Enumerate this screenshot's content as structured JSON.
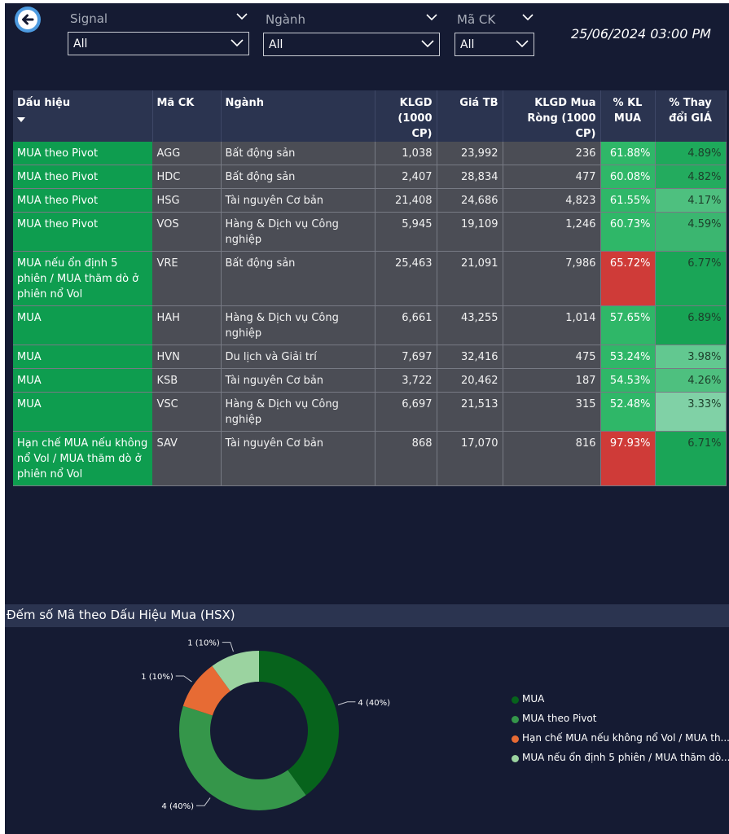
{
  "header": {
    "datetime": "25/06/2024 03:00 PM",
    "slicers": [
      {
        "title": "Signal",
        "value": "All"
      },
      {
        "title": "Ngành",
        "value": "All"
      },
      {
        "title": "Mã CK",
        "value": "All"
      }
    ]
  },
  "table": {
    "columns": [
      "Dấu hiệu",
      "Mã CK",
      "Ngành",
      "KLGD (1000 CP)",
      "Giá TB",
      "KLGD Mua Ròng (1000 CP)",
      "% KL MUA",
      "% Thay đổi GIÁ"
    ],
    "rows": [
      {
        "signal": "MUA theo Pivot",
        "code": "AGG",
        "sector": "Bất động sản",
        "volume": "1,038",
        "price": "23,992",
        "net_buy": "236",
        "buy_pct": "61.88%",
        "change_pct": "4.89%"
      },
      {
        "signal": "MUA theo Pivot",
        "code": "HDC",
        "sector": "Bất động sản",
        "volume": "2,407",
        "price": "28,834",
        "net_buy": "477",
        "buy_pct": "60.08%",
        "change_pct": "4.82%"
      },
      {
        "signal": "MUA theo Pivot",
        "code": "HSG",
        "sector": "Tài nguyên Cơ bản",
        "volume": "21,408",
        "price": "24,686",
        "net_buy": "4,823",
        "buy_pct": "61.55%",
        "change_pct": "4.17%"
      },
      {
        "signal": "MUA theo Pivot",
        "code": "VOS",
        "sector": "Hàng & Dịch vụ Công nghiệp",
        "volume": "5,945",
        "price": "19,109",
        "net_buy": "1,246",
        "buy_pct": "60.73%",
        "change_pct": "4.59%"
      },
      {
        "signal": "MUA nếu ổn định 5 phiên / MUA thăm dò ở phiên nổ Vol",
        "code": "VRE",
        "sector": "Bất động sản",
        "volume": "25,463",
        "price": "21,091",
        "net_buy": "7,986",
        "buy_pct": "65.72%",
        "change_pct": "6.77%"
      },
      {
        "signal": "MUA",
        "code": "HAH",
        "sector": "Hàng & Dịch vụ Công nghiệp",
        "volume": "6,661",
        "price": "43,255",
        "net_buy": "1,014",
        "buy_pct": "57.65%",
        "change_pct": "6.89%"
      },
      {
        "signal": "MUA",
        "code": "HVN",
        "sector": "Du lịch và Giải trí",
        "volume": "7,697",
        "price": "32,416",
        "net_buy": "475",
        "buy_pct": "53.24%",
        "change_pct": "3.98%"
      },
      {
        "signal": "MUA",
        "code": "KSB",
        "sector": "Tài nguyên Cơ bản",
        "volume": "3,722",
        "price": "20,462",
        "net_buy": "187",
        "buy_pct": "54.53%",
        "change_pct": "4.26%"
      },
      {
        "signal": "MUA",
        "code": "VSC",
        "sector": "Hàng & Dịch vụ Công nghiệp",
        "volume": "6,697",
        "price": "21,513",
        "net_buy": "315",
        "buy_pct": "52.48%",
        "change_pct": "3.33%"
      },
      {
        "signal": "Hạn chế MUA nếu không nổ Vol / MUA thăm dò ở phiên nổ Vol",
        "code": "SAV",
        "sector": "Tài nguyên Cơ bản",
        "volume": "868",
        "price": "17,070",
        "net_buy": "816",
        "buy_pct": "97.93%",
        "change_pct": "6.71%"
      }
    ]
  },
  "chart_data": {
    "type": "pie",
    "title": "Đếm số Mã theo Dấu Hiệu Mua (HSX)",
    "categories": [
      "MUA",
      "MUA theo Pivot",
      "Hạn chế MUA nếu không nổ Vol / MUA th...",
      "MUA nếu ổn định 5 phiên / MUA thăm dò..."
    ],
    "values": [
      4,
      4,
      1,
      1
    ],
    "labels": [
      "4 (40%)",
      "4 (40%)",
      "1 (10%)",
      "1 (10%)"
    ],
    "colors": [
      "#07631c",
      "#35964a",
      "#e76b34",
      "#9bd3a0"
    ]
  }
}
